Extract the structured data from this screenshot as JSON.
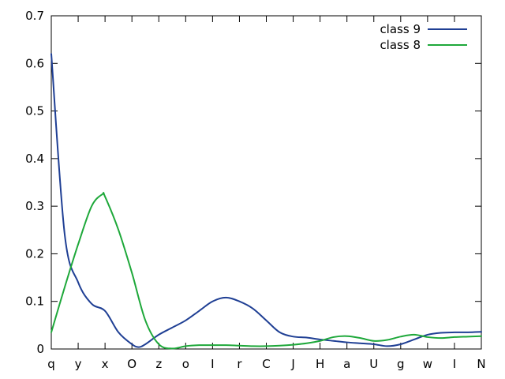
{
  "chart_data": {
    "type": "line",
    "title": "",
    "xlabel": "",
    "ylabel": "",
    "categories": [
      "q",
      "y",
      "x",
      "O",
      "z",
      "o",
      "I",
      "r",
      "C",
      "J",
      "H",
      "a",
      "U",
      "g",
      "w",
      "I",
      "N"
    ],
    "ylim": [
      0,
      0.7
    ],
    "yticks": [
      0,
      0.1,
      0.2,
      0.3,
      0.4,
      0.5,
      0.6,
      0.7
    ],
    "ytick_labels": [
      "0",
      "0.1",
      "0.2",
      "0.3",
      "0.4",
      "0.5",
      "0.6",
      "0.7"
    ],
    "grid": false,
    "legend_position": "top-right",
    "series": [
      {
        "name": "class 9",
        "color": "#1f3f94",
        "x": [
          0,
          0.5,
          1,
          1.5,
          2,
          2.5,
          3,
          3.25,
          3.5,
          4,
          4.5,
          5,
          5.5,
          6,
          6.5,
          7,
          7.5,
          8,
          8.5,
          9,
          9.5,
          10,
          10.5,
          11,
          11.5,
          12,
          12.5,
          13,
          13.5,
          14,
          14.5,
          15,
          15.5,
          16
        ],
        "values": [
          0.62,
          0.24,
          0.14,
          0.095,
          0.08,
          0.035,
          0.01,
          0.004,
          0.01,
          0.03,
          0.045,
          0.06,
          0.08,
          0.1,
          0.108,
          0.1,
          0.085,
          0.06,
          0.035,
          0.026,
          0.024,
          0.02,
          0.017,
          0.014,
          0.012,
          0.01,
          0.006,
          0.01,
          0.02,
          0.03,
          0.034,
          0.035,
          0.035,
          0.036
        ]
      },
      {
        "name": "class 8",
        "color": "#1ea83a",
        "x": [
          0,
          0.5,
          1,
          1.5,
          1.9,
          2,
          2.5,
          3,
          3.5,
          4,
          4.5,
          5,
          5.5,
          6,
          6.5,
          7,
          7.5,
          8,
          8.5,
          9,
          9.5,
          10,
          10.5,
          11,
          11.5,
          12,
          12.5,
          13,
          13.5,
          14,
          14.5,
          15,
          15.5,
          16
        ],
        "values": [
          0.035,
          0.13,
          0.22,
          0.3,
          0.325,
          0.32,
          0.25,
          0.16,
          0.06,
          0.01,
          0.001,
          0.006,
          0.008,
          0.008,
          0.008,
          0.007,
          0.006,
          0.006,
          0.007,
          0.009,
          0.012,
          0.017,
          0.025,
          0.027,
          0.023,
          0.017,
          0.019,
          0.026,
          0.03,
          0.025,
          0.023,
          0.025,
          0.026,
          0.027
        ]
      }
    ]
  }
}
